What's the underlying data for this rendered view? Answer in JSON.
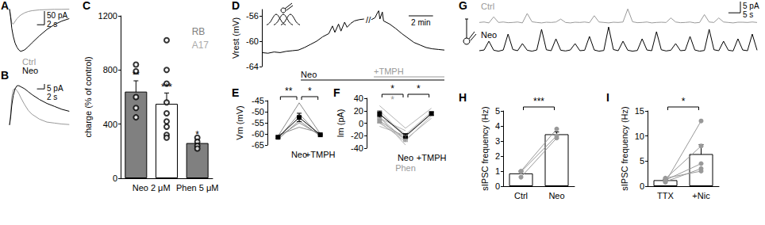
{
  "chart_data": [
    {
      "title": "A",
      "type": "line",
      "tick_labels": false,
      "x": [
        0,
        0.3,
        0.6,
        1,
        1.5,
        2,
        2.5,
        3,
        4,
        5,
        6,
        8,
        10,
        12,
        14,
        16
      ],
      "xlim": [
        0,
        17
      ],
      "ylim": [
        -170,
        10
      ],
      "series": [
        {
          "name": "Ctrl",
          "color": "#999999",
          "values": [
            0,
            -25,
            -50,
            -55,
            -45,
            -35,
            -28,
            -22,
            -14,
            -9,
            -6,
            -3,
            -2,
            -1,
            -1,
            -0.5
          ]
        },
        {
          "name": "Neo",
          "color": "#000000",
          "values": [
            0,
            -30,
            -70,
            -100,
            -125,
            -140,
            -150,
            -155,
            -150,
            -138,
            -124,
            -98,
            -75,
            -57,
            -44,
            -35
          ]
        }
      ],
      "scale_bar": {
        "x": 2,
        "y": 50,
        "x_label": "2 s",
        "y_label": "50 pA"
      }
    },
    {
      "title": "B",
      "type": "line",
      "tick_labels": false,
      "x": [
        0,
        0.3,
        0.6,
        1,
        1.5,
        2,
        2.5,
        3,
        4,
        5,
        6,
        8,
        10,
        12,
        14,
        16
      ],
      "xlim": [
        0,
        17
      ],
      "ylim": [
        -5,
        45
      ],
      "series": [
        {
          "color": "#999999",
          "values": [
            0,
            12,
            28,
            36,
            37,
            35,
            32,
            28,
            21,
            15,
            11,
            6,
            3,
            2,
            1,
            0.5
          ]
        },
        {
          "color": "#000000",
          "values": [
            0,
            8,
            20,
            30,
            37,
            40,
            40,
            39,
            37,
            34,
            31,
            26,
            22,
            19,
            16,
            14
          ]
        }
      ],
      "scale_bar": {
        "x": 2,
        "y": 5,
        "x_label": "2 s",
        "y_label": "5 pA"
      }
    },
    {
      "title": "C",
      "type": "bar",
      "categories": [
        "Neo 2 μM",
        null,
        "Phen 5 μM"
      ],
      "ylabel": "charge (% of control)",
      "ylim": [
        0,
        1200
      ],
      "yticks": [
        0,
        400,
        800,
        1200
      ],
      "legend": "top-right",
      "series": [
        {
          "name": "RB",
          "color": "#808080",
          "values": [
            640,
            null,
            260
          ],
          "errors": [
            80,
            null,
            20
          ],
          "points": [
            [
              840,
              790,
              600,
              520,
              450
            ],
            [],
            [
              300,
              270,
              240,
              220
            ]
          ],
          "marker": "open_circle",
          "significance": [
            "**",
            null,
            "*"
          ]
        },
        {
          "name": "A17",
          "color": "#ffffff",
          "values": [
            null,
            550,
            null
          ],
          "errors": [
            null,
            80,
            null
          ],
          "points": [
            [],
            [
              1020,
              800,
              700,
              560,
              480,
              420,
              380,
              320,
              300
            ],
            []
          ],
          "marker": "open_circle",
          "significance": [
            null,
            "***",
            null
          ]
        }
      ]
    },
    {
      "title": "D",
      "type": "line",
      "tick_labels": "y",
      "ylabel": "Vrest (mV)",
      "x": [
        0,
        0.5,
        1,
        1.5,
        2,
        2.5,
        3,
        3.5,
        4,
        4.5,
        5,
        5.5,
        5.8,
        6,
        6.3,
        6.5,
        6.8,
        7,
        7.3,
        7.6,
        8,
        8.4,
        8.6,
        9,
        9.3,
        9.5,
        9.6,
        9.7,
        9.9,
        10,
        10.5,
        11,
        11.5,
        12,
        12.5,
        13,
        13.5,
        14,
        14.5,
        15
      ],
      "xlim": [
        0,
        15
      ],
      "ylim": [
        -64,
        -55
      ],
      "yticks": [
        -64,
        -60,
        -56
      ],
      "series": [
        {
          "color": "#000000",
          "values": [
            -61.8,
            -61.9,
            -61.7,
            -61.8,
            -61.6,
            -61.5,
            -61.4,
            -61,
            -60.5,
            -60,
            -59.3,
            -58.8,
            -57.6,
            -58.6,
            -57.3,
            -58.4,
            -57,
            -57.8,
            -57.2,
            -56.8,
            -56.6,
            -56.5,
            null,
            -56.6,
            -56.3,
            -55.5,
            -55.2,
            -56.5,
            -55.4,
            -56.8,
            -57.3,
            -58,
            -58.8,
            -59.5,
            -60.2,
            -60.6,
            -61,
            -61.2,
            -61.3,
            -61.4
          ]
        }
      ],
      "treatments": [
        {
          "label": "Neo",
          "start": 3.2,
          "end": 15,
          "color": "#000000"
        },
        {
          "label": "+TMPH",
          "start": 9.2,
          "end": 15,
          "color": "#999999"
        }
      ],
      "annotations": [
        {
          "text": "//",
          "x": 8.75
        }
      ],
      "scale_bar": {
        "x": 2,
        "x_label": "2 min"
      }
    },
    {
      "title": "E",
      "type": "line",
      "categories": [
        null,
        "Neo",
        "+TMPH"
      ],
      "ylabel": "Vm (mV)",
      "ylim": [
        -65,
        -45
      ],
      "yticks": [
        -65,
        -60,
        -55,
        -50,
        -45
      ],
      "series": [
        {
          "color": "#8c8c8c",
          "marker": "none",
          "values": [
            -61,
            -46,
            -60
          ]
        },
        {
          "color": "#8c8c8c",
          "marker": "none",
          "values": [
            -62,
            -51,
            -61
          ]
        },
        {
          "color": "#8c8c8c",
          "marker": "none",
          "values": [
            -61.5,
            -55,
            -60.5
          ]
        },
        {
          "color": "#8c8c8c",
          "marker": "none",
          "values": [
            -60.5,
            -57,
            -59.5
          ]
        },
        {
          "color": "#8c8c8c",
          "marker": "none",
          "values": [
            -62.5,
            -54,
            -61
          ]
        },
        {
          "color": "#000000",
          "marker": "square",
          "values": [
            -61.5,
            -52.6,
            -60.4
          ],
          "errors": [
            0.4,
            1.9,
            0.3
          ]
        }
      ],
      "brackets": [
        {
          "between": [
            0,
            1
          ],
          "label": "**"
        },
        {
          "between": [
            1,
            2
          ],
          "label": "*"
        }
      ]
    },
    {
      "title": "F",
      "type": "line",
      "categories": [
        null,
        "Neo",
        "+TMPH"
      ],
      "ylabel": "Im (pA)",
      "ylim": [
        -40,
        40
      ],
      "yticks": [
        -40,
        -20,
        0,
        20,
        40
      ],
      "series": [
        {
          "color": "#b3b3b3",
          "marker": "none",
          "values": [
            28,
            -8,
            24
          ]
        },
        {
          "color": "#b3b3b3",
          "marker": "none",
          "values": [
            15,
            -18,
            18
          ]
        },
        {
          "color": "#b3b3b3",
          "marker": "none",
          "values": [
            10,
            -28,
            12
          ]
        },
        {
          "color": "#b3b3b3",
          "marker": "none",
          "values": [
            20,
            -22,
            15
          ]
        },
        {
          "color": "#b3b3b3",
          "marker": "none",
          "values": [
            0,
            -26,
            8
          ]
        },
        {
          "color": "#b3b3b3",
          "marker": "none",
          "values": [
            8,
            -12,
            null
          ]
        },
        {
          "color": "#b3b3b3",
          "marker": "none",
          "values": [
            2,
            -30,
            null
          ]
        },
        {
          "color": "#b3b3b3",
          "marker": "none",
          "values": [
            -5,
            -20,
            null
          ]
        },
        {
          "color": "#b3b3b3",
          "marker": "none",
          "values": [
            10,
            -35,
            null
          ]
        },
        {
          "name": "Phen",
          "color": "#999999",
          "marker": "square",
          "values": [
            3.8,
            -24.3,
            null
          ],
          "errors": [
            3.4,
            5.2,
            null
          ]
        },
        {
          "color": "#000000",
          "marker": "square",
          "values": [
            14.6,
            -20.4,
            15.4
          ],
          "errors": [
            4.9,
            3.5,
            2.7
          ]
        }
      ],
      "brackets": [
        {
          "between": [
            0,
            1
          ],
          "label": "*"
        },
        {
          "between": [
            0,
            1
          ],
          "label": "*",
          "color": "#999999"
        },
        {
          "between": [
            1,
            2
          ],
          "label": "*"
        }
      ]
    },
    {
      "title": "G",
      "type": "line",
      "tick_labels": false,
      "x": [
        0,
        2,
        4,
        6,
        8,
        10,
        12,
        14,
        16,
        18,
        20,
        22,
        24,
        26,
        28,
        30,
        32,
        34,
        36,
        38,
        40,
        42,
        44,
        46,
        48,
        50,
        52,
        54,
        56,
        58,
        60,
        62,
        64,
        66,
        68,
        70,
        72,
        74,
        76,
        78,
        80,
        82,
        84,
        86,
        88,
        90,
        92,
        94,
        96,
        98,
        100,
        102,
        104,
        106,
        108,
        110,
        112,
        114,
        116
      ],
      "xlim": [
        0,
        116
      ],
      "ylim": [
        -2,
        10
      ],
      "series": [
        {
          "name": "Ctrl",
          "color": "#999999",
          "values": [
            0,
            0.2,
            -0.2,
            2.5,
            0,
            0.2,
            -0.1,
            0,
            0.2,
            -0.2,
            4,
            0.3,
            0,
            -0.2,
            0.1,
            0,
            0.2,
            1.5,
            0,
            -0.2,
            0.1,
            0,
            0.2,
            -0.1,
            3,
            0.2,
            0,
            -0.2,
            0.1,
            0,
            0.2,
            6,
            0.3,
            -0.1,
            0,
            0.2,
            -0.2,
            0,
            0.1,
            0,
            2,
            0.2,
            -0.1,
            0,
            0.2,
            -0.2,
            0,
            3.5,
            0.2,
            0,
            2,
            0.2,
            0,
            -0.2,
            0.1,
            0.1,
            0,
            0.2,
            0
          ]
        },
        {
          "name": "Neo",
          "color": "#000000",
          "values": [
            0,
            0.3,
            4,
            0.2,
            -0.2,
            0.3,
            7,
            0.5,
            0,
            3,
            0.2,
            -0.2,
            0.3,
            9,
            0.4,
            0,
            5,
            0.2,
            -0.1,
            0.3,
            3,
            0,
            0.2,
            6,
            0.3,
            -0.2,
            0.1,
            10,
            0.5,
            0,
            4,
            0.2,
            -0.2,
            0.1,
            5,
            0.3,
            0,
            8,
            0.4,
            -0.1,
            0.2,
            3,
            0,
            0.2,
            6,
            0.3,
            -0.2,
            0.1,
            9,
            0.4,
            0,
            4,
            0.2,
            -0.1,
            5,
            0.3,
            0,
            7,
            0.2
          ]
        }
      ],
      "scale_bar": {
        "x": 5,
        "y": 5,
        "x_label": "5 s",
        "y_label": "5 pA"
      }
    },
    {
      "title": "H",
      "type": "bar",
      "categories": [
        "Ctrl",
        "Neo"
      ],
      "ylabel": "sIPSC frequency (Hz)",
      "ylim": [
        0,
        5
      ],
      "yticks": [
        0,
        1,
        2,
        3,
        4,
        5
      ],
      "series": [
        {
          "type": "bar",
          "color": "#ffffff",
          "values": [
            0.85,
            3.45
          ],
          "errors": [
            0.15,
            0.15
          ]
        },
        {
          "type": "line",
          "color": "#999999",
          "marker": "circle",
          "values": [
            0.6,
            3.2
          ]
        },
        {
          "type": "line",
          "color": "#999999",
          "marker": "circle",
          "values": [
            1,
            3.8
          ]
        },
        {
          "type": "line",
          "color": "#999999",
          "marker": "circle",
          "values": [
            0.95,
            3.35
          ]
        }
      ],
      "brackets": [
        {
          "between": [
            0,
            1
          ],
          "label": "***"
        }
      ]
    },
    {
      "title": "I",
      "type": "bar",
      "categories": [
        "TTX",
        "+Nic"
      ],
      "ylabel": "sIPSC frequency (Hz)",
      "ylim": [
        0,
        15
      ],
      "yticks": [
        0,
        5,
        10,
        15
      ],
      "series": [
        {
          "type": "bar",
          "color": "#ffffff",
          "values": [
            1.2,
            6.4
          ],
          "errors": [
            0.15,
            1.9
          ]
        },
        {
          "type": "line",
          "color": "#999999",
          "marker": "circle",
          "values": [
            0.8,
            13
          ]
        },
        {
          "type": "line",
          "color": "#999999",
          "marker": "circle",
          "values": [
            1.5,
            8
          ]
        },
        {
          "type": "line",
          "color": "#999999",
          "marker": "circle",
          "values": [
            1.2,
            4.5
          ]
        },
        {
          "type": "line",
          "color": "#999999",
          "marker": "circle",
          "values": [
            0.9,
            3.5
          ]
        },
        {
          "type": "line",
          "color": "#999999",
          "marker": "circle",
          "values": [
            1.6,
            3
          ]
        }
      ],
      "brackets": [
        {
          "between": [
            0,
            1
          ],
          "label": "*"
        }
      ]
    }
  ]
}
